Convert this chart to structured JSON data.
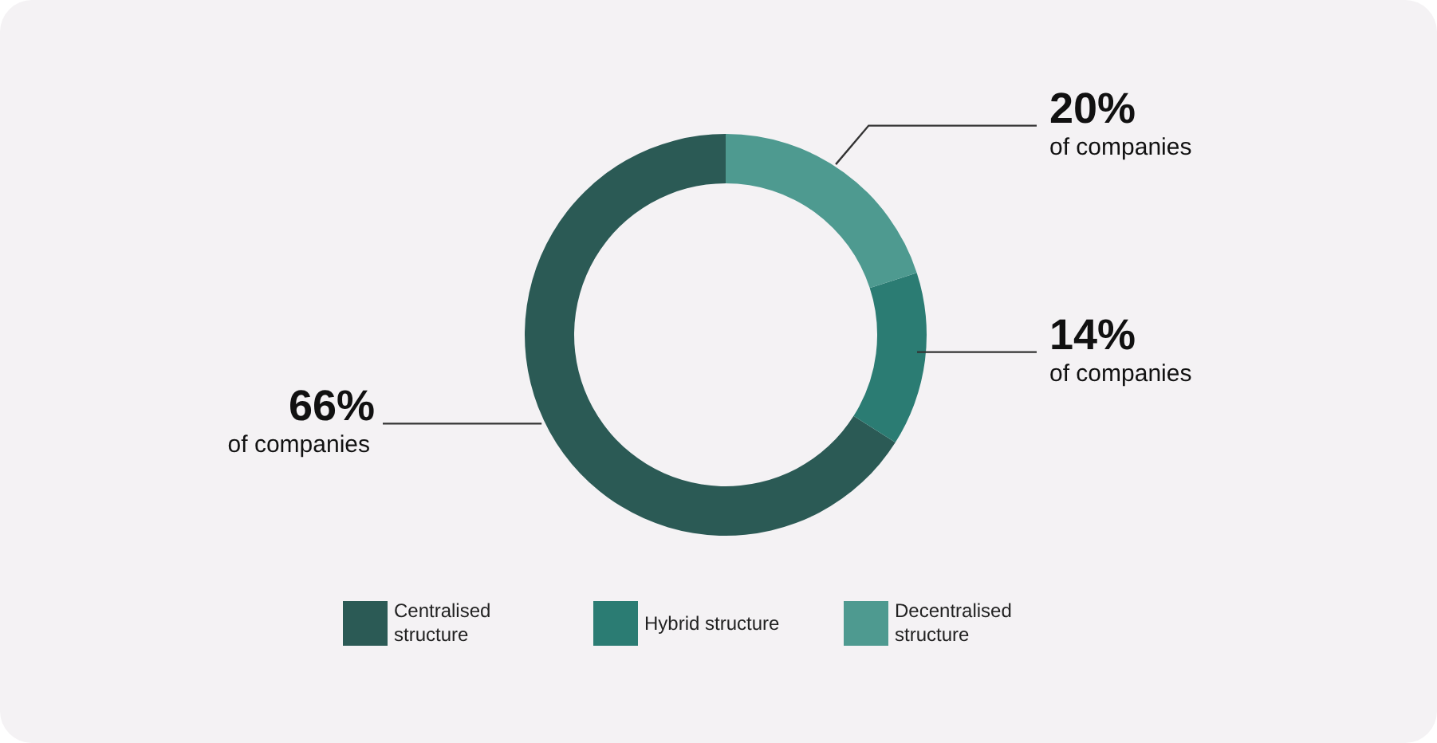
{
  "chart_data": {
    "type": "donut",
    "categories": [
      "Centralised structure",
      "Hybrid structure",
      "Decentralised structure"
    ],
    "values": [
      66,
      14,
      20
    ],
    "colors": [
      "#2b5a55",
      "#2b7c73",
      "#4e9a90"
    ],
    "value_labels": [
      "66%",
      "14%",
      "20%"
    ],
    "annotations": [
      "of companies",
      "of companies",
      "of companies"
    ],
    "legend": "bottom"
  }
}
